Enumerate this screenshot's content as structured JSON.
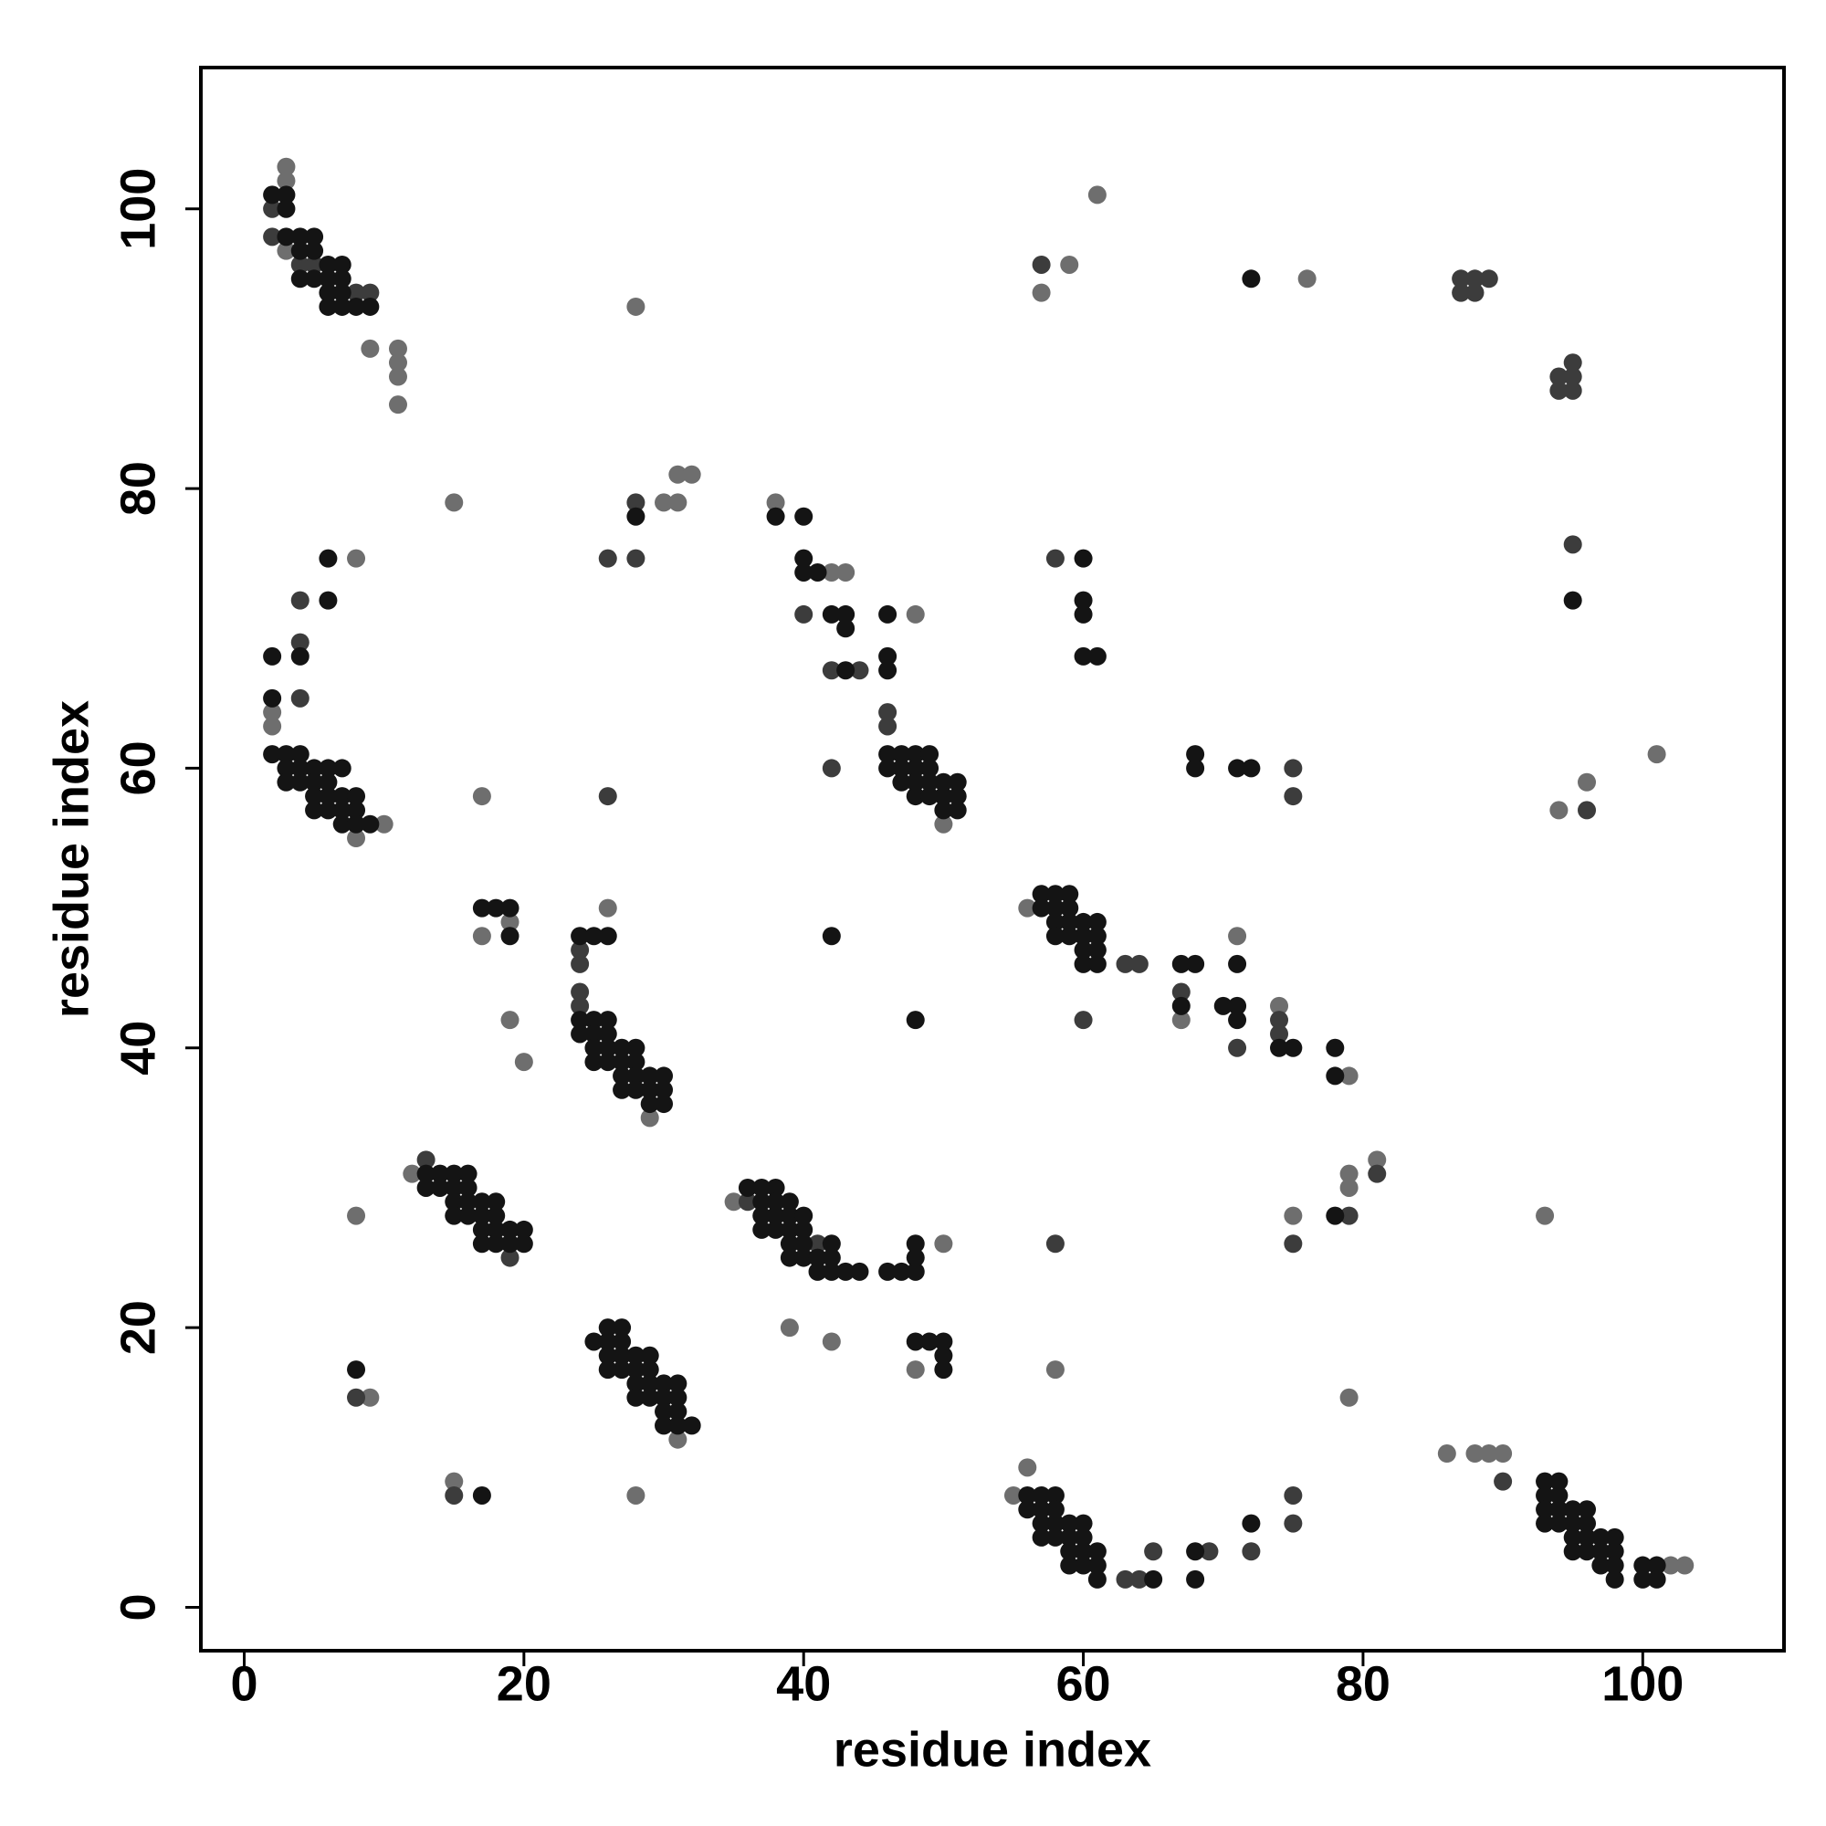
{
  "chart_data": {
    "type": "scatter",
    "xlabel": "residue index",
    "ylabel": "residue index",
    "xlim": [
      -3.1,
      110.1
    ],
    "ylim": [
      -3.1,
      110.1
    ],
    "xticks": [
      0,
      20,
      40,
      60,
      80,
      100
    ],
    "yticks": [
      0,
      20,
      40,
      60,
      80,
      100
    ],
    "grid": false,
    "series": [
      {
        "color": "#6e6e6e",
        "x": [
          3,
          3,
          3,
          9,
          11,
          11,
          11,
          11,
          28,
          2,
          2,
          8,
          10,
          8,
          15,
          8,
          26,
          17,
          17,
          19,
          19,
          20,
          28,
          15,
          9,
          31,
          32,
          30,
          31,
          38,
          42,
          43,
          48,
          39,
          42,
          48,
          50,
          56,
          56,
          55,
          57,
          59,
          61,
          76,
          71,
          67,
          79,
          101,
          96,
          94,
          93,
          79,
          79,
          81,
          79,
          86,
          88,
          89,
          90,
          102,
          103,
          12,
          35,
          31,
          29,
          50,
          58,
          75,
          74
        ],
        "values": [
          103,
          102,
          97,
          90,
          90,
          89,
          88,
          86,
          93,
          64,
          63,
          55,
          56,
          75,
          79,
          28,
          50,
          58,
          48,
          49,
          42,
          39,
          8,
          9,
          15,
          81,
          81,
          79,
          79,
          79,
          74,
          74,
          71,
          20,
          19,
          17,
          26,
          50,
          10,
          8,
          94,
          96,
          101,
          95,
          48,
          42,
          38,
          61,
          59,
          57,
          28,
          30,
          31,
          32,
          15,
          11,
          11,
          11,
          11,
          3,
          3,
          31,
          29,
          12,
          35,
          56,
          17,
          28,
          43
        ]
      },
      {
        "color": "#3c3c3c",
        "x": [
          26,
          28,
          28,
          42,
          26,
          15,
          58,
          58,
          75,
          75,
          57,
          95,
          95,
          95,
          94,
          94,
          95,
          87,
          88,
          89,
          87,
          88,
          90,
          60,
          63,
          64,
          65,
          69,
          72,
          75,
          75,
          75,
          79,
          81,
          96,
          4,
          4,
          4,
          8,
          46,
          46,
          40,
          44,
          42,
          63,
          64,
          74,
          74,
          67,
          71,
          19,
          2,
          4,
          5,
          8,
          9,
          2,
          24,
          24,
          24,
          24,
          13,
          36,
          41,
          50
        ],
        "values": [
          75,
          79,
          75,
          60,
          58,
          8,
          26,
          75,
          60,
          58,
          96,
          76,
          89,
          88,
          88,
          87,
          87,
          95,
          95,
          95,
          94,
          94,
          9,
          42,
          46,
          46,
          4,
          4,
          4,
          8,
          6,
          26,
          28,
          31,
          57,
          72,
          69,
          65,
          15,
          64,
          63,
          71,
          67,
          67,
          2,
          2,
          42,
          41,
          44,
          40,
          25,
          98,
          96,
          96,
          94,
          94,
          100,
          47,
          46,
          44,
          43,
          32,
          29,
          26,
          58
        ]
      },
      {
        "color": "#141414",
        "x": [
          2,
          3,
          3,
          3,
          4,
          5,
          4,
          5,
          6,
          7,
          4,
          5,
          6,
          7,
          6,
          7,
          6,
          7,
          8,
          9,
          2,
          2,
          2,
          3,
          4,
          3,
          4,
          5,
          6,
          7,
          3,
          4,
          5,
          6,
          5,
          6,
          7,
          8,
          5,
          6,
          7,
          8,
          7,
          8,
          9,
          4,
          6,
          6,
          13,
          14,
          15,
          16,
          13,
          14,
          15,
          16,
          15,
          16,
          17,
          18,
          15,
          16,
          17,
          18,
          17,
          18,
          19,
          20,
          17,
          18,
          19,
          20,
          24,
          25,
          26,
          24,
          25,
          26,
          24,
          25,
          26,
          25,
          26,
          27,
          28,
          25,
          26,
          27,
          28,
          27,
          28,
          29,
          30,
          27,
          28,
          29,
          30,
          29,
          30,
          17,
          18,
          19,
          19,
          26,
          27,
          25,
          26,
          27,
          26,
          27,
          28,
          29,
          26,
          27,
          28,
          29,
          28,
          29,
          30,
          31,
          28,
          29,
          30,
          31,
          30,
          31,
          30,
          31,
          32,
          8,
          17,
          28,
          38,
          40,
          40,
          40,
          41,
          42,
          43,
          43,
          43,
          46,
          46,
          46,
          46,
          47,
          48,
          49,
          46,
          47,
          48,
          49,
          47,
          48,
          49,
          50,
          51,
          48,
          49,
          50,
          51,
          50,
          51,
          36,
          37,
          38,
          37,
          38,
          39,
          37,
          38,
          39,
          40,
          37,
          38,
          39,
          40,
          39,
          40,
          42,
          39,
          40,
          41,
          42,
          41,
          42,
          43,
          44,
          46,
          47,
          48,
          48,
          48,
          48,
          49,
          50,
          50,
          50,
          42,
          48,
          57,
          58,
          59,
          57,
          58,
          59,
          58,
          59,
          60,
          61,
          58,
          59,
          60,
          61,
          60,
          61,
          60,
          61,
          67,
          68,
          71,
          67,
          70,
          71,
          71,
          74,
          75,
          78,
          78,
          56,
          57,
          58,
          56,
          57,
          58,
          57,
          58,
          59,
          60,
          57,
          58,
          59,
          60,
          59,
          60,
          61,
          59,
          60,
          61,
          61,
          65,
          68,
          68,
          72,
          60,
          60,
          60,
          60,
          61,
          68,
          68,
          71,
          72,
          72,
          95,
          93,
          94,
          93,
          94,
          93,
          94,
          95,
          96,
          93,
          94,
          95,
          96,
          95,
          96,
          97,
          98,
          95,
          96,
          97,
          98,
          97,
          98,
          98,
          100,
          101,
          100,
          101,
          78
        ],
        "values": [
          101,
          101,
          100,
          98,
          98,
          98,
          97,
          97,
          96,
          96,
          95,
          95,
          95,
          95,
          94,
          94,
          93,
          93,
          93,
          93,
          68,
          65,
          61,
          61,
          61,
          60,
          60,
          60,
          60,
          60,
          59,
          59,
          59,
          59,
          58,
          58,
          58,
          58,
          57,
          57,
          57,
          57,
          56,
          56,
          56,
          68,
          72,
          75,
          31,
          31,
          31,
          31,
          30,
          30,
          30,
          30,
          29,
          29,
          29,
          29,
          28,
          28,
          28,
          28,
          27,
          27,
          27,
          27,
          26,
          26,
          26,
          26,
          48,
          48,
          48,
          42,
          42,
          42,
          41,
          41,
          41,
          40,
          40,
          40,
          40,
          39,
          39,
          39,
          39,
          38,
          38,
          38,
          38,
          37,
          37,
          37,
          37,
          36,
          36,
          50,
          50,
          50,
          48,
          20,
          20,
          19,
          19,
          19,
          18,
          18,
          18,
          18,
          17,
          17,
          17,
          17,
          16,
          16,
          16,
          16,
          15,
          15,
          15,
          15,
          14,
          14,
          13,
          13,
          13,
          17,
          8,
          78,
          78,
          78,
          75,
          74,
          74,
          71,
          71,
          70,
          67,
          71,
          68,
          67,
          61,
          61,
          61,
          61,
          60,
          60,
          60,
          60,
          59,
          59,
          59,
          59,
          59,
          58,
          58,
          58,
          58,
          57,
          57,
          30,
          30,
          30,
          29,
          29,
          29,
          28,
          28,
          28,
          28,
          27,
          27,
          27,
          27,
          26,
          26,
          26,
          25,
          25,
          25,
          25,
          24,
          24,
          24,
          24,
          24,
          24,
          24,
          25,
          26,
          19,
          19,
          19,
          18,
          17,
          48,
          42,
          51,
          51,
          51,
          50,
          50,
          50,
          49,
          49,
          49,
          49,
          48,
          48,
          48,
          48,
          47,
          47,
          46,
          46,
          46,
          46,
          46,
          43,
          43,
          43,
          42,
          40,
          40,
          40,
          38,
          8,
          8,
          8,
          7,
          7,
          7,
          6,
          6,
          6,
          6,
          5,
          5,
          5,
          5,
          4,
          4,
          4,
          3,
          3,
          3,
          2,
          2,
          4,
          2,
          6,
          75,
          72,
          71,
          68,
          68,
          61,
          60,
          60,
          60,
          95,
          72,
          9,
          9,
          8,
          8,
          7,
          7,
          7,
          7,
          6,
          6,
          6,
          6,
          5,
          5,
          5,
          5,
          4,
          4,
          4,
          4,
          3,
          3,
          2,
          3,
          3,
          2,
          2,
          28
        ]
      }
    ]
  }
}
